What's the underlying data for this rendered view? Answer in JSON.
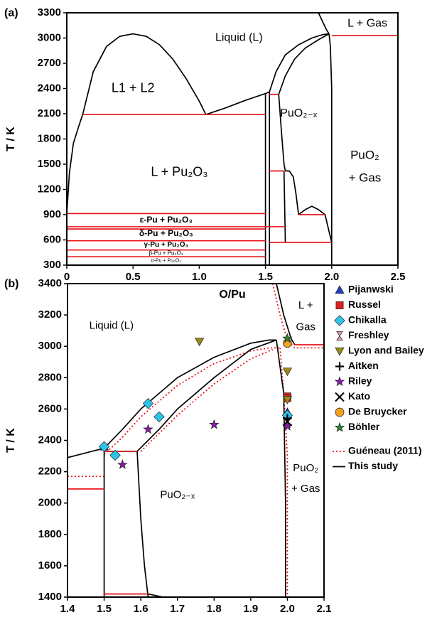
{
  "chart_data": [
    {
      "type": "line",
      "panel_label": "(a)",
      "xlabel": "O/Pu",
      "ylabel": "T / K",
      "xlim": [
        0,
        2.5
      ],
      "ylim": [
        300,
        3300
      ],
      "xticks": [
        0,
        0.5,
        {
          "value": 1,
          "label": "1.0"
        },
        1.5,
        {
          "value": 2,
          "label": "2.0"
        },
        2.5
      ],
      "yticks": [
        300,
        600,
        900,
        1200,
        1500,
        1800,
        2100,
        2400,
        2700,
        3000,
        3300
      ],
      "annotations": [
        "Liquid (L)",
        "L + Gas",
        "L1 + L2",
        "PuO₂₋ₓ",
        "PuO₂",
        "+ Gas",
        "L + Pu₂O₃",
        "ε-Pu + Pu₂O₃",
        "δ-Pu + Pu₂O₃",
        "γ-Pu + Pu₂O₃",
        "β-Pu + Pu₂O₃",
        "α-Pu + Pu₂O₃"
      ],
      "series": [
        {
          "type": "line",
          "color": "#000000",
          "x": [
            0,
            0.02,
            0.05,
            0.09,
            0.12,
            0.2,
            0.3,
            0.4,
            0.5,
            0.6,
            0.7,
            0.8,
            0.9,
            1.0,
            1.05,
            null,
            1.05,
            1.2,
            1.35,
            1.5,
            1.53,
            null,
            1.5,
            1.5,
            null,
            1.53,
            1.53,
            null,
            1.53,
            1.58,
            1.65,
            1.75,
            1.85,
            1.93,
            1.98,
            null,
            1.6,
            1.65,
            1.72,
            1.8,
            1.9,
            1.98,
            null,
            1.6,
            1.62,
            1.64,
            1.65,
            1.68,
            1.71,
            1.73,
            1.75,
            null,
            1.64,
            1.65,
            null,
            1.75,
            1.8,
            1.85,
            1.9,
            1.95,
            1.98,
            2.0,
            null,
            2.0,
            2.0,
            1.99,
            1.98,
            null,
            1.9,
            1.93,
            1.96,
            1.98
          ],
          "values": [
            913,
            1400,
            1750,
            1950,
            2090,
            2600,
            2900,
            3020,
            3050,
            3020,
            2920,
            2750,
            2520,
            2250,
            2090,
            null,
            2090,
            2170,
            2260,
            2340,
            2360,
            null,
            300,
            2340,
            null,
            300,
            2360,
            null,
            2360,
            2600,
            2800,
            2920,
            3000,
            3040,
            3050,
            null,
            2330,
            2550,
            2750,
            2880,
            2980,
            3050,
            null,
            2330,
            1900,
            1500,
            1420,
            1420,
            1350,
            1150,
            900,
            null,
            1420,
            570,
            null,
            900,
            960,
            1000,
            960,
            900,
            700,
            570,
            null,
            300,
            2400,
            2900,
            3050,
            null,
            3300,
            3200,
            3100,
            3050
          ]
        },
        {
          "type": "line",
          "color": "#e8141c",
          "x": [
            0.12,
            1.5,
            null,
            0,
            1.5,
            null,
            0,
            1.65,
            null,
            0,
            1.5,
            null,
            0,
            1.5,
            null,
            0,
            1.5,
            null,
            0,
            1.5,
            null,
            1.53,
            1.6,
            null,
            1.53,
            1.64,
            null,
            1.75,
            1.95,
            null,
            1.53,
            2.0,
            null,
            2.0,
            2.5
          ],
          "values": [
            2090,
            2090,
            null,
            913,
            913,
            null,
            757,
            757,
            null,
            730,
            730,
            null,
            590,
            590,
            null,
            480,
            480,
            null,
            400,
            400,
            null,
            2330,
            2330,
            null,
            1420,
            1420,
            null,
            900,
            900,
            null,
            570,
            570,
            null,
            3030,
            3030
          ]
        }
      ]
    },
    {
      "type": "line",
      "panel_label": "(b)",
      "xlabel": "O/Pu",
      "ylabel": "T / K",
      "xlim": [
        1.4,
        2.1
      ],
      "ylim": [
        1400,
        3400
      ],
      "xticks": [
        1.4,
        1.5,
        1.6,
        1.7,
        1.8,
        1.9,
        {
          "value": 2,
          "label": "2.0"
        },
        2.1
      ],
      "yticks": [
        1400,
        1600,
        1800,
        2000,
        2200,
        2400,
        2600,
        2800,
        3000,
        3200,
        3400
      ],
      "legend": "right",
      "annotations": [
        "Liquid (L)",
        "L +",
        "Gas",
        "PuO₂₋ₓ",
        "PuO₂",
        "+ Gas"
      ],
      "series": [
        {
          "name": "Pijanwski",
          "type": "scatter",
          "marker": "triangle",
          "color": "#1f3fbf",
          "x": [
            1.5,
            2.0
          ],
          "values": [
            2360,
            2580
          ]
        },
        {
          "name": "Russel",
          "type": "scatter",
          "marker": "square",
          "color": "#e02020",
          "x": [
            2.0,
            2.0
          ],
          "values": [
            2680,
            2670
          ]
        },
        {
          "name": "Chikalla",
          "type": "scatter",
          "marker": "diamond",
          "color": "#2ec4e8",
          "x": [
            1.5,
            1.53,
            1.62,
            1.65,
            2.0
          ],
          "values": [
            2360,
            2305,
            2635,
            2550,
            2560
          ]
        },
        {
          "name": "Freshley",
          "type": "scatter",
          "marker": "hourglass",
          "color": "#e890c0",
          "x": [
            2.0
          ],
          "values": [
            2510
          ]
        },
        {
          "name": "Lyon and Bailey",
          "type": "scatter",
          "marker": "down",
          "color": "#9a8a1a",
          "x": [
            1.76,
            2.0,
            2.0
          ],
          "values": [
            3030,
            2840,
            2660
          ]
        },
        {
          "name": "Aitken",
          "type": "scatter",
          "marker": "plus",
          "color": "#000000",
          "x": [
            2.0
          ],
          "values": [
            2540
          ]
        },
        {
          "name": "Riley",
          "type": "scatter",
          "marker": "star",
          "color": "#8a1aa8",
          "x": [
            1.55,
            1.62,
            1.8,
            2.0
          ],
          "values": [
            2245,
            2470,
            2500,
            2490
          ]
        },
        {
          "name": "Kato",
          "type": "scatter",
          "marker": "x",
          "color": "#000000",
          "x": [
            2.0
          ],
          "values": [
            2520
          ]
        },
        {
          "name": "De Bruycker",
          "type": "scatter",
          "marker": "circle",
          "color": "#f0a020",
          "x": [
            2.0
          ],
          "values": [
            3020
          ]
        },
        {
          "name": "Böhler",
          "type": "scatter",
          "marker": "star",
          "color": "#2a8a2a",
          "x": [
            2.0
          ],
          "values": [
            3050
          ]
        },
        {
          "name": "Guéneau (2011)",
          "type": "line",
          "line_style": "dotted",
          "color": "#e8141c",
          "x": [
            1.4,
            1.5,
            null,
            1.5,
            1.55,
            1.6,
            1.7,
            1.8,
            1.9,
            1.95,
            1.98,
            null,
            1.6,
            1.7,
            1.8,
            1.9,
            1.96,
            null,
            1.98,
            1.99,
            2.0,
            2.0,
            null,
            1.96,
            1.98,
            2.0,
            2.02,
            2.1
          ],
          "values": [
            2170,
            2170,
            null,
            2310,
            2420,
            2550,
            2750,
            2890,
            2970,
            2990,
            2990,
            null,
            2330,
            2560,
            2760,
            2920,
            2980,
            null,
            2990,
            2700,
            2300,
            1400,
            null,
            3400,
            3200,
            3040,
            2990,
            2990
          ]
        },
        {
          "name": "This study",
          "type": "line",
          "color": "#000000",
          "x": [
            1.4,
            1.5,
            1.55,
            1.6,
            1.65,
            1.7,
            1.8,
            1.9,
            1.95,
            1.97,
            null,
            1.59,
            1.65,
            1.7,
            1.8,
            1.9,
            1.97,
            null,
            1.5,
            1.59,
            null,
            1.5,
            1.5,
            null,
            1.59,
            1.6,
            1.61,
            1.62,
            null,
            1.97,
            1.99,
            1.995,
            1.995,
            null,
            1.97,
            1.99,
            2.01,
            2.02,
            null,
            1.62,
            1.66
          ],
          "values": [
            2290,
            2350,
            2470,
            2600,
            2700,
            2800,
            2930,
            3020,
            3040,
            3040,
            null,
            2330,
            2470,
            2600,
            2800,
            2980,
            3040,
            null,
            2330,
            2330,
            null,
            1400,
            2330,
            null,
            2330,
            1900,
            1600,
            1400,
            null,
            3040,
            2700,
            2000,
            1400,
            null,
            3400,
            3200,
            3050,
            3010,
            null,
            1420,
            1400
          ]
        },
        {
          "type": "line",
          "color": "#e8141c",
          "x": [
            1.4,
            1.5,
            null,
            1.5,
            1.62,
            null,
            1.5,
            1.59,
            null,
            2.02,
            2.1
          ],
          "values": [
            2090,
            2090,
            null,
            1420,
            1420,
            null,
            2330,
            2330,
            null,
            3010,
            3010
          ]
        }
      ]
    }
  ]
}
